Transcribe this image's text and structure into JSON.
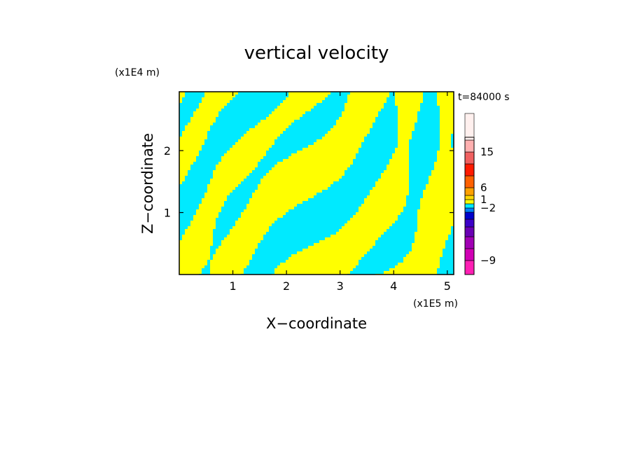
{
  "chart_data": {
    "type": "heatmap",
    "title": "vertical velocity",
    "xlabel": "X−coordinate",
    "ylabel": "Z−coordinate",
    "x_unit": "(x1E5 m)",
    "y_unit": "(x1E4 m)",
    "time_label": "t=84000 s",
    "xlim": [
      0,
      5.12
    ],
    "ylim": [
      0,
      2.95
    ],
    "x_ticks": [
      1,
      2,
      3,
      4,
      5
    ],
    "y_ticks": [
      1,
      2
    ],
    "grid": false,
    "colorbar": {
      "position": "right",
      "levels": [
        {
          "color": "#ff1fb4"
        },
        {
          "color": "#d000b4"
        },
        {
          "color": "#a000b4"
        },
        {
          "color": "#6a00b4"
        },
        {
          "color": "#3c00c8"
        },
        {
          "color": "#0000cc"
        },
        {
          "color": "#0080ff"
        },
        {
          "color": "#00eaff"
        },
        {
          "color": "#ffff00"
        },
        {
          "color": "#ffd700"
        },
        {
          "color": "#ffa000"
        },
        {
          "color": "#ff6000"
        },
        {
          "color": "#ff1a00"
        },
        {
          "color": "#f06060"
        },
        {
          "color": "#ffb0b0"
        },
        {
          "color": "#fff0ee"
        }
      ],
      "labels": [
        {
          "text": "−9",
          "level": 1
        },
        {
          "text": "−2",
          "level": 7
        },
        {
          "text": "1",
          "level": 9
        },
        {
          "text": "6",
          "level": 11
        },
        {
          "text": "15",
          "level": 14
        }
      ]
    },
    "dominant_colors": {
      "positive": "#ffff00",
      "negative": "#00eaff",
      "strong_negative": "#0000cc"
    }
  }
}
